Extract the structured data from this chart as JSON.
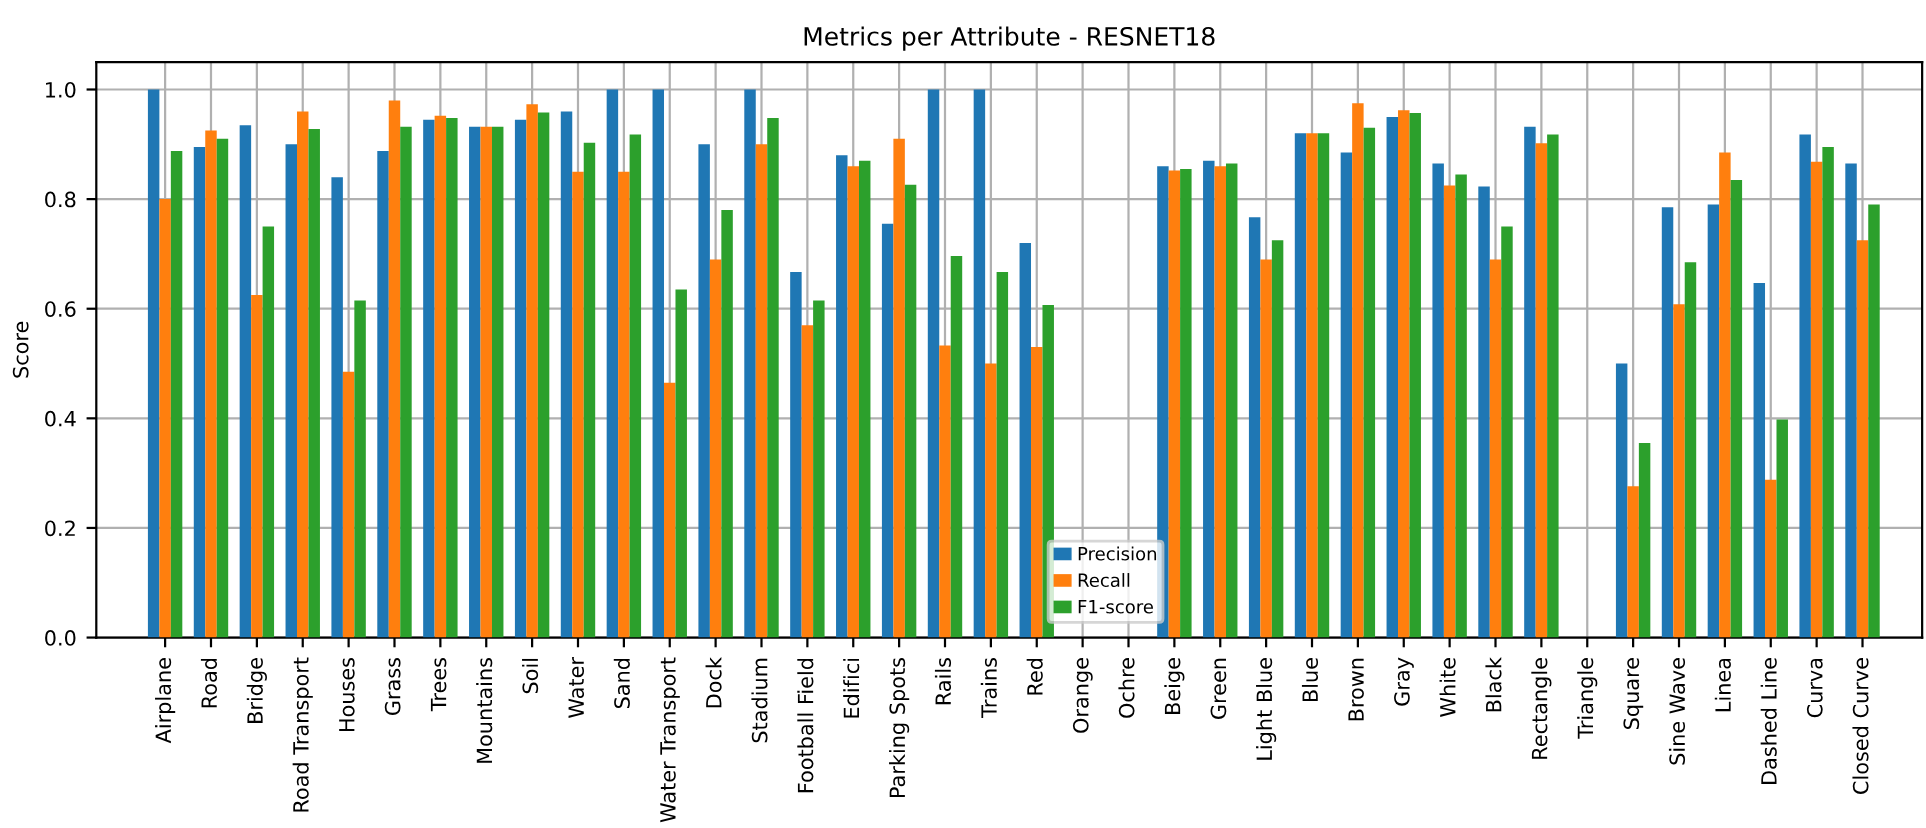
{
  "chart_data": {
    "type": "bar",
    "title": "Metrics per Attribute - RESNET18",
    "ylabel": "Score",
    "categories": [
      "Airplane",
      "Road",
      "Bridge",
      "Road Transport",
      "Houses",
      "Grass",
      "Trees",
      "Mountains",
      "Soil",
      "Water",
      "Sand",
      "Water Transport",
      "Dock",
      "Stadium",
      "Football Field",
      "Edifici",
      "Parking Spots",
      "Rails",
      "Trains",
      "Red",
      "Orange",
      "Ochre",
      "Beige",
      "Green",
      "Light Blue",
      "Blue",
      "Brown",
      "Gray",
      "White",
      "Black",
      "Rectangle",
      "Triangle",
      "Square",
      "Sine Wave",
      "Linea",
      "Dashed Line",
      "Curva",
      "Closed Curve"
    ],
    "series": [
      {
        "name": "Precision",
        "color": "#1f77b4",
        "values": [
          1.0,
          0.895,
          0.935,
          0.9,
          0.84,
          0.888,
          0.945,
          0.932,
          0.945,
          0.96,
          1.0,
          1.0,
          0.9,
          1.0,
          0.667,
          0.88,
          0.755,
          1.0,
          1.0,
          0.72,
          0,
          0,
          0.86,
          0.87,
          0.767,
          0.92,
          0.885,
          0.95,
          0.865,
          0.823,
          0.932,
          0,
          0.5,
          0.785,
          0.79,
          0.647,
          0.918,
          0.865
        ]
      },
      {
        "name": "Recall",
        "color": "#ff7f0e",
        "values": [
          0.8,
          0.925,
          0.625,
          0.96,
          0.485,
          0.98,
          0.952,
          0.932,
          0.973,
          0.85,
          0.85,
          0.465,
          0.69,
          0.9,
          0.57,
          0.86,
          0.91,
          0.533,
          0.5,
          0.53,
          0,
          0,
          0.852,
          0.86,
          0.69,
          0.92,
          0.975,
          0.962,
          0.825,
          0.69,
          0.902,
          0,
          0.276,
          0.608,
          0.885,
          0.288,
          0.868,
          0.725
        ]
      },
      {
        "name": "F1-score",
        "color": "#2ca02c",
        "values": [
          0.888,
          0.91,
          0.75,
          0.928,
          0.615,
          0.932,
          0.948,
          0.932,
          0.958,
          0.903,
          0.918,
          0.635,
          0.78,
          0.948,
          0.615,
          0.87,
          0.826,
          0.696,
          0.667,
          0.607,
          0,
          0,
          0.855,
          0.865,
          0.725,
          0.92,
          0.93,
          0.957,
          0.845,
          0.75,
          0.918,
          0,
          0.355,
          0.685,
          0.835,
          0.398,
          0.895,
          0.79
        ]
      }
    ],
    "ylim": [
      0,
      1.05
    ],
    "yticks": [
      {
        "value": 0,
        "label": "0.0"
      },
      {
        "value": 0.2,
        "label": "0.2"
      },
      {
        "value": 0.4,
        "label": "0.4"
      },
      {
        "value": 0.6,
        "label": "0.6"
      },
      {
        "value": 0.8,
        "label": "0.8"
      },
      {
        "value": 1.0,
        "label": "1.0"
      }
    ],
    "grid": true,
    "legend": "bottom"
  }
}
